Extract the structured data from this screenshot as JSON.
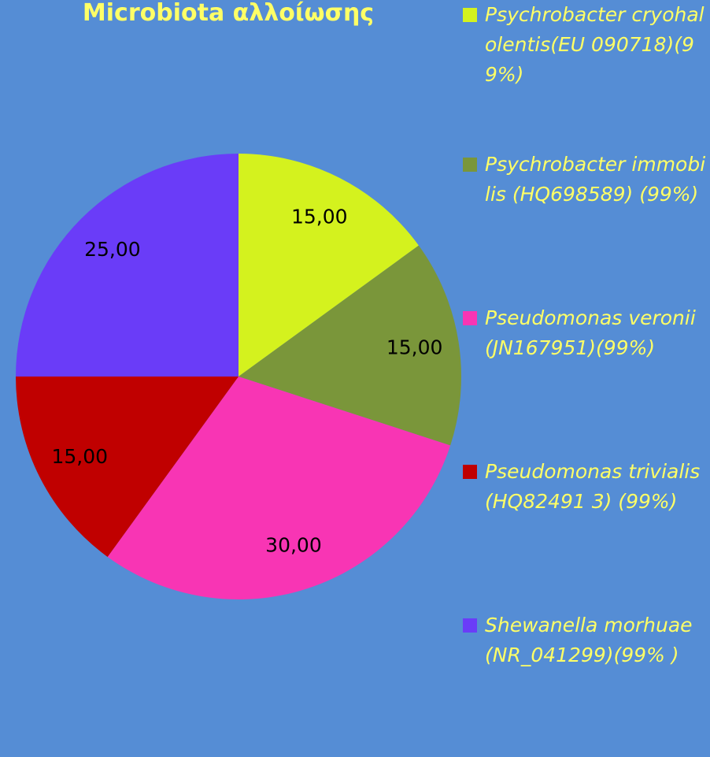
{
  "chart_data": {
    "type": "pie",
    "title": "Microbiota αλλοίωσης",
    "series": [
      {
        "name": "Psychrobacter cryohalolentis(EU 090718)(99%)",
        "color": "#d4f21e",
        "values": [
          15
        ],
        "value_labels": [
          "15,00"
        ]
      },
      {
        "name": "Psychrobacter immobilis (HQ698589) (99%)",
        "color": "#7a963a",
        "values": [
          15
        ],
        "value_labels": [
          "15,00"
        ]
      },
      {
        "name": "Pseudomonas veronii (JN167951)(99%)",
        "color": "#f835b4",
        "values": [
          30
        ],
        "value_labels": [
          "30,00"
        ]
      },
      {
        "name": "Pseudomonas trivialis(HQ82491 3) (99%)",
        "color": "#c00000",
        "values": [
          15
        ],
        "value_labels": [
          "15,00"
        ]
      },
      {
        "name": "Shewanella morhuae (NR_041299)(99% )",
        "color": "#6a3cf8",
        "values": [
          25
        ],
        "value_labels": [
          "25,00"
        ]
      }
    ]
  }
}
